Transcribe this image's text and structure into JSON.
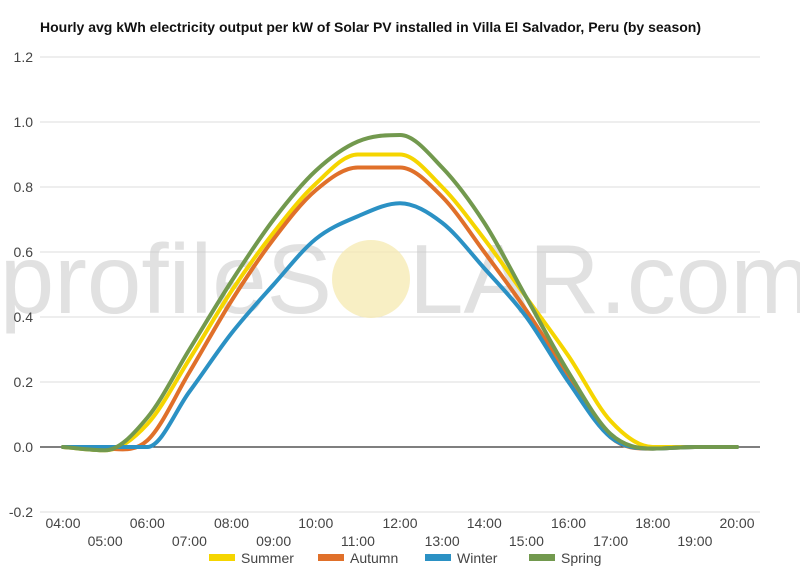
{
  "chart_data": {
    "type": "line",
    "title": "Hourly avg kWh electricity output per kW of Solar PV installed in Villa El Salvador, Peru (by season)",
    "xlabel": "",
    "ylabel": "",
    "x": [
      "04:00",
      "05:00",
      "06:00",
      "07:00",
      "08:00",
      "09:00",
      "10:00",
      "11:00",
      "12:00",
      "13:00",
      "14:00",
      "15:00",
      "16:00",
      "17:00",
      "18:00",
      "19:00",
      "20:00"
    ],
    "y_ticks": [
      "1.2",
      "1.0",
      "0.8",
      "0.6",
      "0.4",
      "0.2",
      "0.0",
      "-0.2"
    ],
    "ylim": [
      -0.2,
      1.2
    ],
    "grid": true,
    "legend_position": "bottom",
    "series": [
      {
        "name": "Summer",
        "color": "#f5d500",
        "values": [
          0,
          -0.01,
          0.07,
          0.27,
          0.48,
          0.66,
          0.81,
          0.9,
          0.9,
          0.8,
          0.64,
          0.46,
          0.28,
          0.08,
          0.0,
          0.0,
          0.0
        ]
      },
      {
        "name": "Autumn",
        "color": "#e0702a",
        "values": [
          0,
          -0.005,
          0.02,
          0.23,
          0.45,
          0.64,
          0.79,
          0.86,
          0.86,
          0.77,
          0.6,
          0.42,
          0.22,
          0.03,
          -0.005,
          0.0,
          0.0
        ]
      },
      {
        "name": "Winter",
        "color": "#2b91c4",
        "values": [
          0,
          0.0,
          0.0,
          0.17,
          0.35,
          0.5,
          0.64,
          0.71,
          0.75,
          0.69,
          0.55,
          0.4,
          0.2,
          0.03,
          -0.005,
          0.0,
          0.0
        ]
      },
      {
        "name": "Spring",
        "color": "#72994e",
        "values": [
          0,
          -0.01,
          0.09,
          0.3,
          0.51,
          0.7,
          0.85,
          0.94,
          0.96,
          0.86,
          0.69,
          0.46,
          0.23,
          0.04,
          -0.005,
          0.0,
          0.0
        ]
      }
    ],
    "watermark": {
      "text_left": "profileS",
      "text_right": "LAR.com",
      "sun_color": "#f6e9b0"
    }
  }
}
